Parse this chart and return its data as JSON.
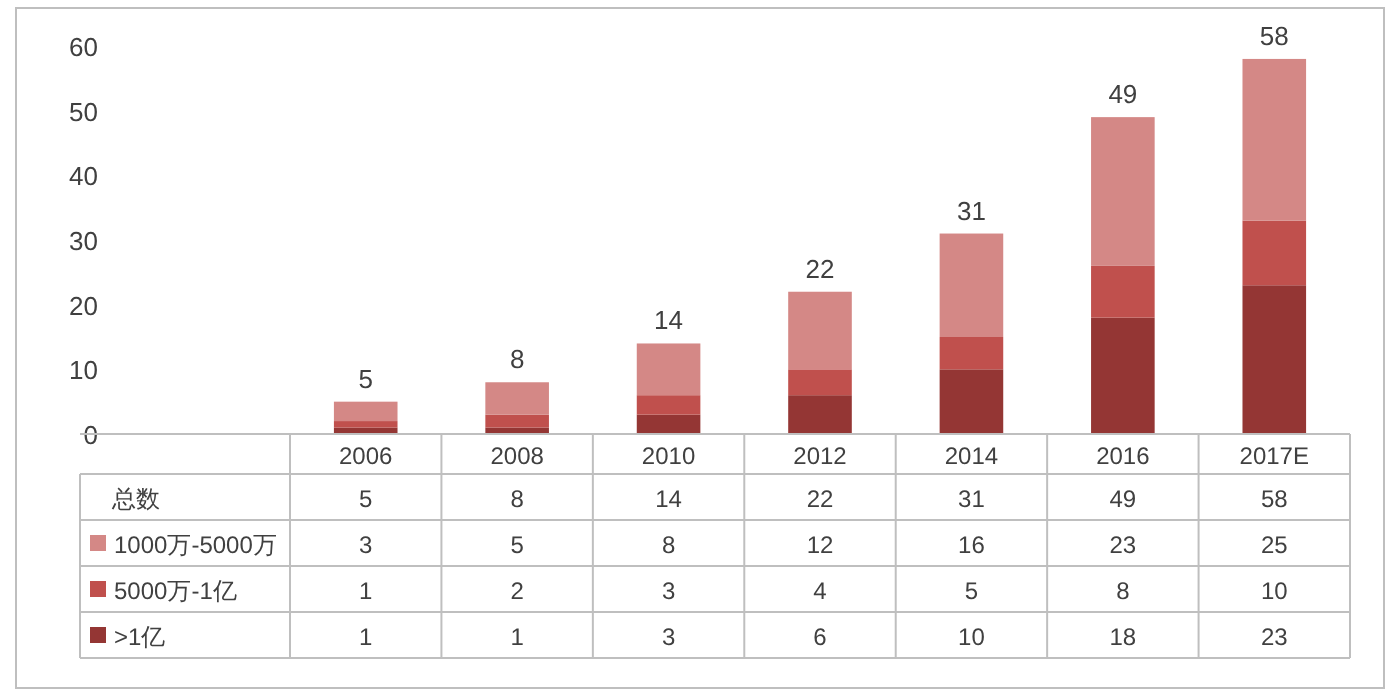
{
  "chart_data": {
    "type": "bar",
    "stacked": true,
    "categories": [
      "2006",
      "2008",
      "2010",
      "2012",
      "2014",
      "2016",
      "2017E"
    ],
    "series": [
      {
        "name": ">1亿",
        "color": "#943634",
        "values": [
          1,
          1,
          3,
          6,
          10,
          18,
          23
        ]
      },
      {
        "name": "5000万-1亿",
        "color": "#c0504d",
        "values": [
          1,
          2,
          3,
          4,
          5,
          8,
          10
        ]
      },
      {
        "name": "1000万-5000万",
        "color": "#d48886",
        "values": [
          3,
          5,
          8,
          12,
          16,
          23,
          25
        ]
      }
    ],
    "ylim": [
      0,
      60
    ],
    "yticks": [
      0,
      10,
      20,
      30,
      40,
      50,
      60
    ],
    "totals": [
      "5",
      "8",
      "14",
      "22",
      "31",
      "49",
      "58"
    ],
    "annotations": [
      "总数"
    ],
    "data_labels": true,
    "legend": "bottom"
  }
}
